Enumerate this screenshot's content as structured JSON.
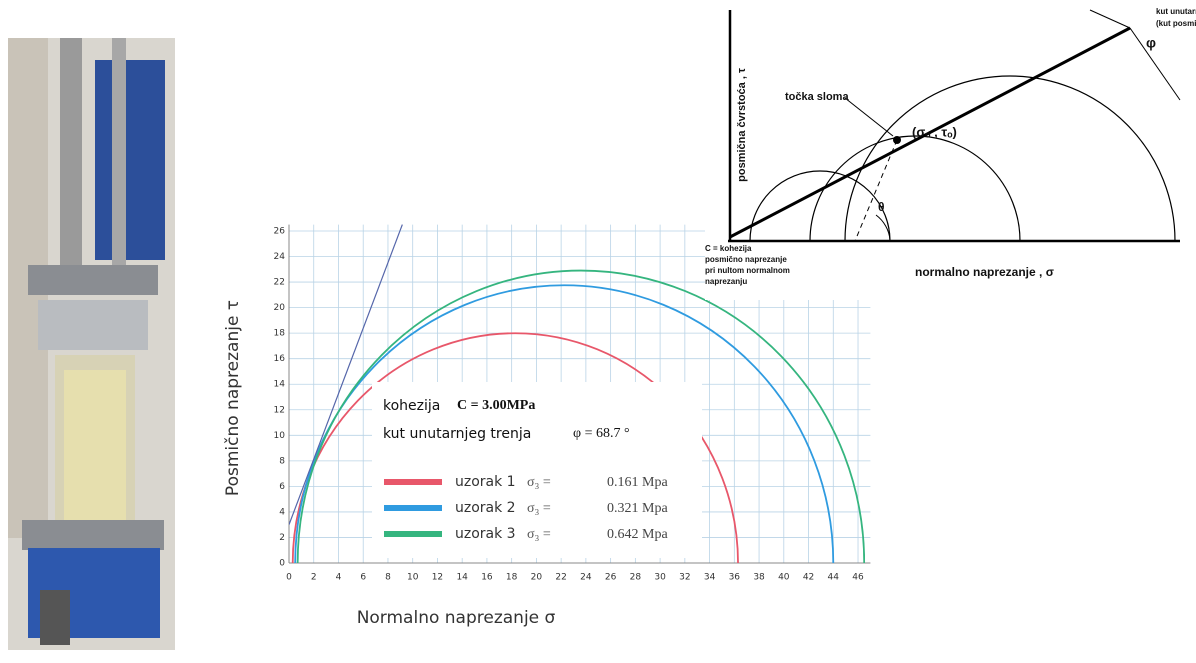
{
  "chart_data": {
    "type": "mohr",
    "x_label": "Normalno naprezanje σ",
    "y_label": "Posmično naprezanje τ",
    "xlim": [
      0,
      47
    ],
    "ylim": [
      0,
      26.5
    ],
    "xticks": [
      0,
      2,
      4,
      6,
      8,
      10,
      12,
      14,
      16,
      18,
      20,
      22,
      24,
      26,
      28,
      30,
      32,
      34,
      36,
      38,
      40,
      42,
      44,
      46
    ],
    "yticks": [
      0,
      2,
      4,
      6,
      8,
      10,
      12,
      14,
      16,
      18,
      20,
      22,
      24,
      26
    ],
    "grid": true,
    "cohesion_name": "kohezija",
    "cohesion": {
      "value": 3,
      "label": "C =  3.00MPa"
    },
    "friction_name": "kut unutarnjeg trenja",
    "friction_angle": {
      "value": 68.7,
      "label": "φ = 68.7 °"
    },
    "line_color": "#5566aa",
    "series": [
      {
        "name": "uzorak 1",
        "color": "#e8576a",
        "sigma_label": "σ₃ =",
        "sigma3": "0.161 Mpa",
        "sigma_range": [
          0.3,
          36.3
        ]
      },
      {
        "name": "uzorak 2",
        "color": "#2f9be0",
        "sigma_label": "σ₃ =",
        "sigma3": "0.321 Mpa",
        "sigma_range": [
          0.5,
          44
        ]
      },
      {
        "name": "uzorak 3",
        "color": "#35b57f",
        "sigma_label": "σ₃ =",
        "sigma3": "0.642 Mpa",
        "sigma_range": [
          0.7,
          46.5
        ]
      }
    ]
  },
  "diagram": {
    "y_axis": "posmična čvrstoća , τ",
    "x_axis": "normalno naprezanje , σ",
    "failure_point": "točka sloma",
    "point_label": "(σₒ , τₒ)",
    "phi": "φ",
    "theta": "θ",
    "angle_name": [
      "kut unutarnjeg trenja",
      "(kut posmičnog otpora)"
    ],
    "cohesion_note": [
      "C = kohezija",
      "posmično naprezanje",
      "pri nultom normalnom",
      "naprezanju"
    ]
  }
}
